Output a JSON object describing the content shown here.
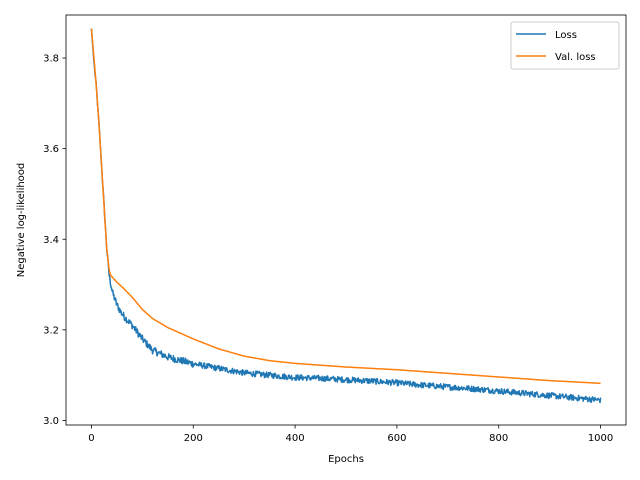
{
  "chart_data": {
    "type": "line",
    "title": "",
    "xlabel": "Epochs",
    "ylabel": "Negative log-likelihood",
    "xlim": [
      -50,
      1050
    ],
    "ylim": [
      2.99,
      3.895
    ],
    "xticks": [
      0,
      200,
      400,
      600,
      800,
      1000
    ],
    "yticks": [
      3.0,
      3.2,
      3.4,
      3.6,
      3.8
    ],
    "ytick_labels": [
      "3.0",
      "3.2",
      "3.4",
      "3.6",
      "3.8"
    ],
    "grid": false,
    "legend_position": "top-right",
    "series": [
      {
        "name": "Loss",
        "color": "#1f77b4",
        "noise": true,
        "x": [
          0,
          5,
          10,
          15,
          20,
          25,
          30,
          35,
          38,
          42,
          50,
          60,
          80,
          100,
          120,
          150,
          200,
          250,
          300,
          350,
          400,
          450,
          500,
          550,
          600,
          650,
          700,
          750,
          800,
          850,
          900,
          950,
          1000
        ],
        "values": [
          3.865,
          3.79,
          3.73,
          3.65,
          3.56,
          3.47,
          3.38,
          3.32,
          3.3,
          3.28,
          3.255,
          3.235,
          3.21,
          3.18,
          3.155,
          3.14,
          3.125,
          3.115,
          3.105,
          3.1,
          3.095,
          3.093,
          3.09,
          3.087,
          3.083,
          3.078,
          3.074,
          3.07,
          3.065,
          3.06,
          3.055,
          3.05,
          3.045
        ]
      },
      {
        "name": "Val. loss",
        "color": "#ff7f0e",
        "noise": false,
        "x": [
          0,
          5,
          10,
          15,
          20,
          25,
          30,
          35,
          38,
          42,
          50,
          60,
          80,
          100,
          120,
          150,
          200,
          250,
          300,
          350,
          400,
          450,
          500,
          550,
          600,
          650,
          700,
          750,
          800,
          850,
          900,
          950,
          1000
        ],
        "values": [
          3.865,
          3.8,
          3.73,
          3.65,
          3.56,
          3.47,
          3.38,
          3.33,
          3.32,
          3.315,
          3.305,
          3.295,
          3.272,
          3.245,
          3.225,
          3.205,
          3.18,
          3.158,
          3.142,
          3.132,
          3.126,
          3.122,
          3.118,
          3.115,
          3.112,
          3.108,
          3.104,
          3.1,
          3.096,
          3.092,
          3.088,
          3.085,
          3.082
        ]
      }
    ]
  }
}
